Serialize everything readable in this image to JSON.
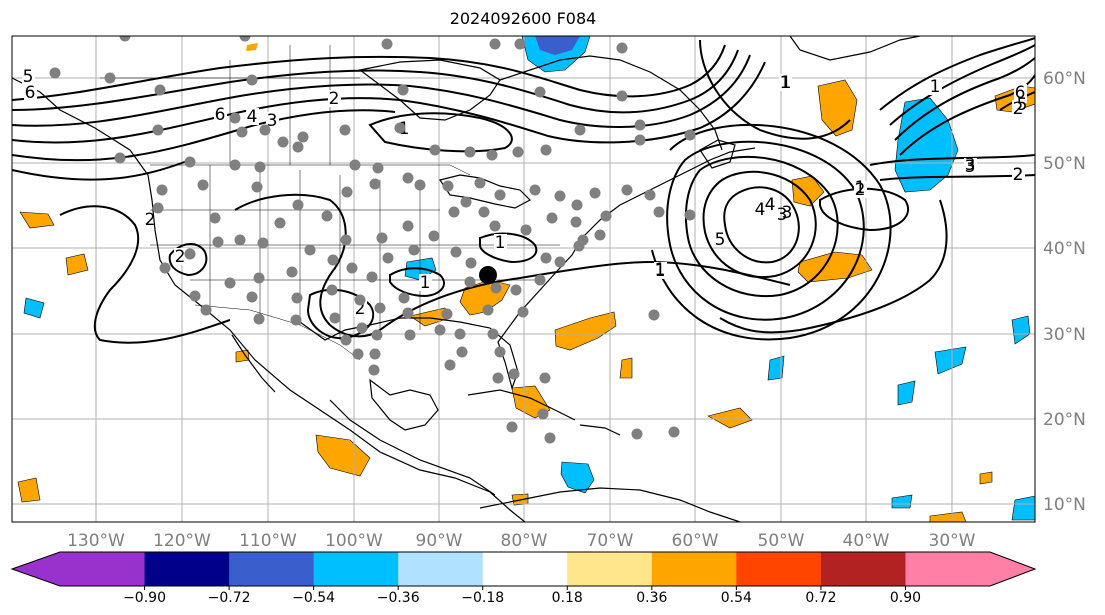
{
  "title": "2024092600 F084",
  "map": {
    "lon_labels": [
      "130°W",
      "120°W",
      "110°W",
      "100°W",
      "90°W",
      "80°W",
      "70°W",
      "60°W",
      "50°W",
      "40°W",
      "30°W"
    ],
    "lat_labels": [
      "60°N",
      "50°N",
      "40°N",
      "30°N",
      "20°N",
      "10°N"
    ],
    "contour_labels": [
      "5",
      "6",
      "6",
      "4",
      "3",
      "2",
      "1",
      "1",
      "1",
      "2",
      "2",
      "2",
      "1",
      "1",
      "1",
      "2",
      "1",
      "3",
      "2",
      "6",
      "5",
      "4",
      "3",
      "1",
      "4",
      "3",
      "5",
      "1",
      "3",
      "2",
      "2",
      "1"
    ],
    "colors": {
      "land_line": "#000000",
      "grid": "#b0b0b0",
      "station_dot": "#808080",
      "storm_center": "#000000",
      "positive_fill": "#ffa500",
      "negative_fill": "#00bfff",
      "strong_negative_fill": "#4169e1"
    }
  },
  "colorbar": {
    "ticks": [
      "−0.90",
      "−0.72",
      "−0.54",
      "−0.36",
      "−0.18",
      "0.18",
      "0.36",
      "0.54",
      "0.72",
      "0.90"
    ],
    "colors": [
      "#9932cc",
      "#00008b",
      "#3a5fcd",
      "#00bfff",
      "#b0e2ff",
      "#ffffff",
      "#ffe68a",
      "#ffa500",
      "#ff4500",
      "#b22222",
      "#ff7fa6"
    ]
  }
}
